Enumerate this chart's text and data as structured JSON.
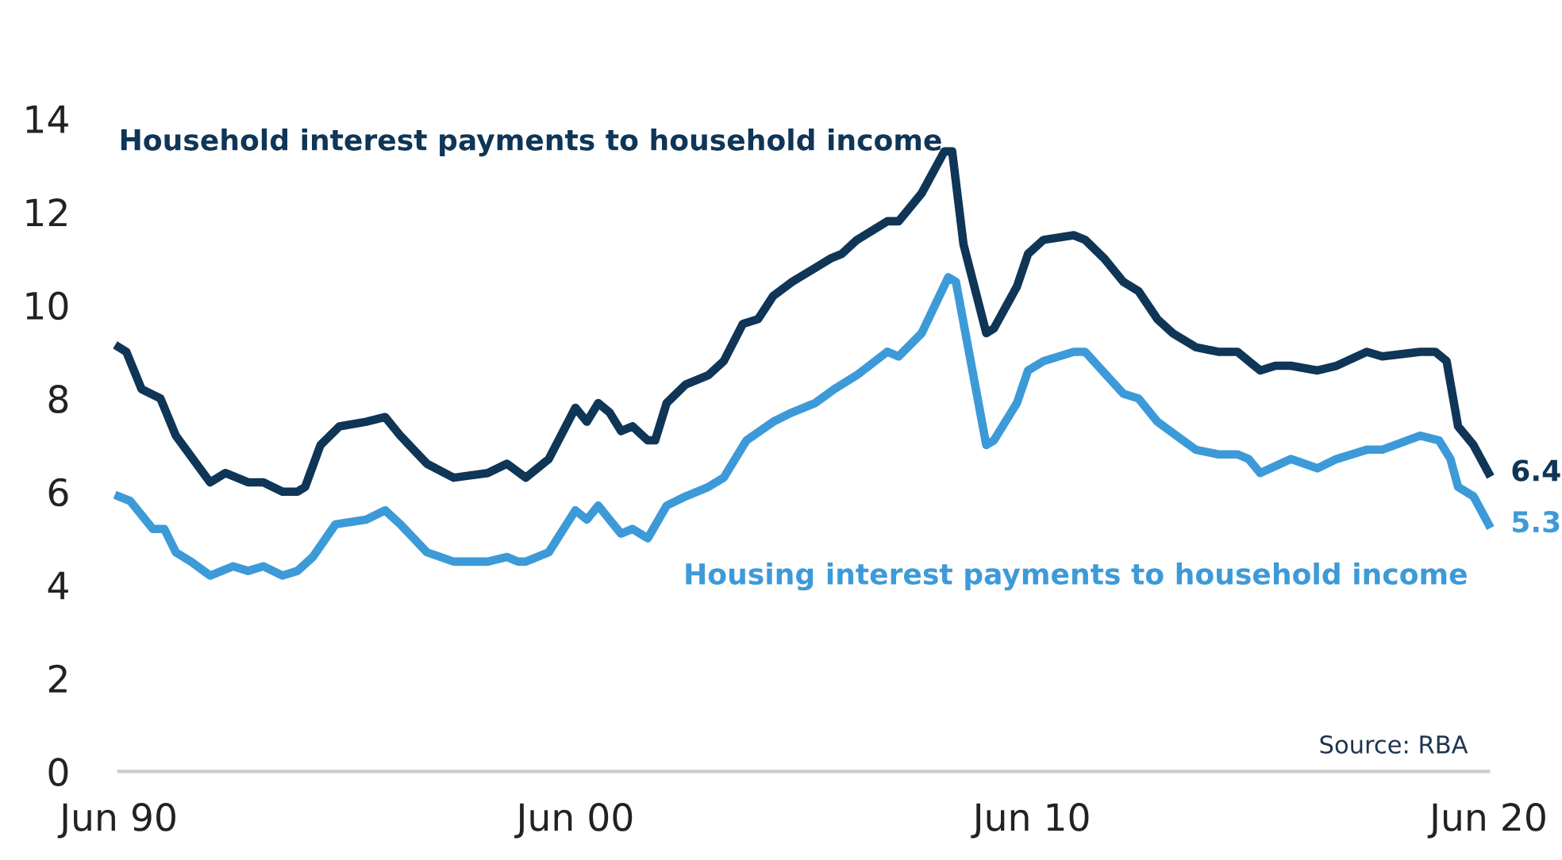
{
  "chart_data": {
    "type": "line",
    "annotations": [
      "Source: RBA"
    ],
    "xlim": [
      "1990-06",
      "2020-06"
    ],
    "xticks": [
      {
        "value": "1990-06",
        "label": "Jun 90"
      },
      {
        "value": "2000-06",
        "label": "Jun 00"
      },
      {
        "value": "2010-06",
        "label": "Jun 10"
      },
      {
        "value": "2020-06",
        "label": "Jun 20"
      }
    ],
    "ylim": [
      0,
      14
    ],
    "yticks": [
      0,
      2,
      4,
      6,
      8,
      10,
      12,
      14
    ],
    "grid": false,
    "legend": false,
    "marker": "none",
    "line_style": "solid",
    "series": [
      {
        "name": "Household interest payments to household income",
        "color": "#0f3557",
        "x": [
          "1990-06",
          "1990-08",
          "1990-12",
          "1991-05",
          "1991-09",
          "1992-06",
          "1992-10",
          "1993-04",
          "1993-08",
          "1994-01",
          "1994-05",
          "1994-07",
          "1994-11",
          "1995-04",
          "1995-11",
          "1996-04",
          "1996-08",
          "1997-03",
          "1997-10",
          "1998-07",
          "1998-12",
          "1999-05",
          "1999-11",
          "2000-06",
          "2000-09",
          "2000-12",
          "2001-03",
          "2001-06",
          "2001-09",
          "2002-01",
          "2002-03",
          "2002-06",
          "2002-11",
          "2003-05",
          "2003-09",
          "2004-02",
          "2004-06",
          "2004-10",
          "2005-03",
          "2005-09",
          "2006-01",
          "2006-04",
          "2006-08",
          "2007-04",
          "2007-07",
          "2008-01",
          "2008-07",
          "2008-09",
          "2008-12",
          "2009-06",
          "2009-08",
          "2010-02",
          "2010-05",
          "2010-09",
          "2011-05",
          "2011-08",
          "2012-01",
          "2012-06",
          "2012-10",
          "2013-03",
          "2013-07",
          "2014-01",
          "2014-07",
          "2014-12",
          "2015-03",
          "2015-06",
          "2015-10",
          "2016-02",
          "2016-09",
          "2017-02",
          "2017-10",
          "2018-02",
          "2018-12",
          "2019-04",
          "2019-07",
          "2019-10",
          "2020-02",
          "2020-06"
        ],
        "values": [
          9.1,
          9.0,
          8.2,
          8.0,
          7.2,
          6.2,
          6.4,
          6.2,
          6.2,
          6.0,
          6.0,
          6.1,
          7.0,
          7.4,
          7.5,
          7.6,
          7.2,
          6.6,
          6.3,
          6.4,
          6.6,
          6.3,
          6.7,
          7.8,
          7.5,
          7.9,
          7.7,
          7.3,
          7.4,
          7.1,
          7.1,
          7.9,
          8.3,
          8.5,
          8.8,
          9.6,
          9.7,
          10.2,
          10.5,
          10.8,
          11.0,
          11.1,
          11.4,
          11.8,
          11.8,
          12.4,
          13.3,
          13.3,
          11.3,
          9.4,
          9.5,
          10.4,
          11.1,
          11.4,
          11.5,
          11.4,
          11.0,
          10.5,
          10.3,
          9.7,
          9.4,
          9.1,
          9.0,
          9.0,
          8.8,
          8.6,
          8.7,
          8.7,
          8.6,
          8.7,
          9.0,
          8.9,
          9.0,
          9.0,
          8.8,
          7.4,
          7.0,
          6.4
        ],
        "value_labels": [
          null,
          null,
          null,
          null,
          null,
          null,
          null,
          null,
          null,
          null,
          null,
          null,
          null,
          null,
          null,
          null,
          null,
          null,
          null,
          null,
          null,
          null,
          null,
          null,
          null,
          null,
          null,
          null,
          null,
          null,
          null,
          null,
          null,
          null,
          null,
          null,
          null,
          null,
          null,
          null,
          null,
          null,
          null,
          null,
          null,
          null,
          null,
          null,
          null,
          null,
          null,
          null,
          null,
          null,
          null,
          null,
          null,
          null,
          null,
          null,
          null,
          null,
          null,
          null,
          null,
          null,
          null,
          null,
          null,
          null,
          null,
          null,
          null,
          null,
          null,
          null,
          null,
          "6.4"
        ]
      },
      {
        "name": "Housing interest payments to household income",
        "color": "#3d9ad8",
        "x": [
          "1990-06",
          "1990-09",
          "1991-03",
          "1991-06",
          "1991-09",
          "1992-01",
          "1992-06",
          "1992-12",
          "1993-04",
          "1993-08",
          "1994-01",
          "1994-05",
          "1994-09",
          "1995-03",
          "1995-11",
          "1996-04",
          "1996-08",
          "1997-03",
          "1997-10",
          "1998-07",
          "1998-12",
          "1999-03",
          "1999-05",
          "1999-11",
          "2000-06",
          "2000-09",
          "2000-12",
          "2001-06",
          "2001-09",
          "2002-01",
          "2002-06",
          "2002-11",
          "2003-05",
          "2003-09",
          "2004-03",
          "2004-10",
          "2005-03",
          "2005-09",
          "2006-02",
          "2006-08",
          "2007-04",
          "2007-07",
          "2008-01",
          "2008-08",
          "2008-10",
          "2009-06",
          "2009-08",
          "2010-02",
          "2010-05",
          "2010-09",
          "2011-05",
          "2011-08",
          "2012-06",
          "2012-10",
          "2013-03",
          "2013-08",
          "2014-01",
          "2014-07",
          "2014-12",
          "2015-03",
          "2015-06",
          "2016-02",
          "2016-09",
          "2017-02",
          "2017-10",
          "2018-02",
          "2018-12",
          "2019-05",
          "2019-08",
          "2019-10",
          "2020-02",
          "2020-06"
        ],
        "values": [
          5.9,
          5.8,
          5.2,
          5.2,
          4.7,
          4.5,
          4.2,
          4.4,
          4.3,
          4.4,
          4.2,
          4.3,
          4.6,
          5.3,
          5.4,
          5.6,
          5.3,
          4.7,
          4.5,
          4.5,
          4.6,
          4.5,
          4.5,
          4.7,
          5.6,
          5.4,
          5.7,
          5.1,
          5.2,
          5.0,
          5.7,
          5.9,
          6.1,
          6.3,
          7.1,
          7.5,
          7.7,
          7.9,
          8.2,
          8.5,
          9.0,
          8.9,
          9.4,
          10.6,
          10.5,
          7.0,
          7.1,
          7.9,
          8.6,
          8.8,
          9.0,
          9.0,
          8.1,
          8.0,
          7.5,
          7.2,
          6.9,
          6.8,
          6.8,
          6.7,
          6.4,
          6.7,
          6.5,
          6.7,
          6.9,
          6.9,
          7.2,
          7.1,
          6.7,
          6.1,
          5.9,
          5.3
        ],
        "value_labels": [
          null,
          null,
          null,
          null,
          null,
          null,
          null,
          null,
          null,
          null,
          null,
          null,
          null,
          null,
          null,
          null,
          null,
          null,
          null,
          null,
          null,
          null,
          null,
          null,
          null,
          null,
          null,
          null,
          null,
          null,
          null,
          null,
          null,
          null,
          null,
          null,
          null,
          null,
          null,
          null,
          null,
          null,
          null,
          null,
          null,
          null,
          null,
          null,
          null,
          null,
          null,
          null,
          null,
          null,
          null,
          null,
          null,
          null,
          null,
          null,
          null,
          null,
          null,
          null,
          null,
          null,
          null,
          null,
          null,
          null,
          null,
          "5.3"
        ]
      }
    ]
  }
}
